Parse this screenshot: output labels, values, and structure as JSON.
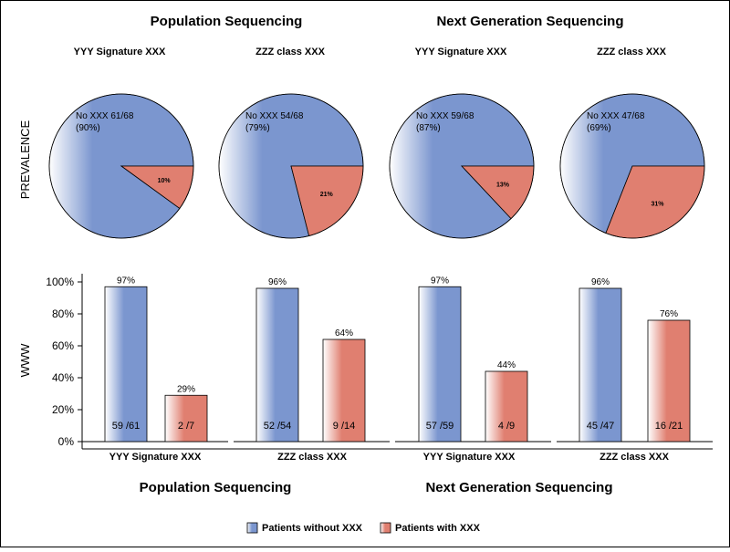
{
  "colors": {
    "without": "#7B96CF",
    "with": "#E07F70",
    "without_light": "#FFFFFF",
    "with_light": "#FFFFFF",
    "outline": "#000000"
  },
  "pie_section": {
    "ylabel": "PREVALENCE"
  },
  "bar_section": {
    "ylabel": "WWW"
  },
  "top_groups": [
    "Population Sequencing",
    "Next Generation Sequencing"
  ],
  "bottom_groups": [
    "Population Sequencing",
    "Next Generation Sequencing"
  ],
  "legend": {
    "without_label": "Patients without XXX",
    "with_label": "Patients with XXX"
  },
  "chart_data": [
    {
      "type": "pie",
      "panels": [
        {
          "group": "Population Sequencing",
          "title": "YYY Signature XXX",
          "slices": [
            {
              "name": "Patients without XXX",
              "value": 90,
              "label_line1": "No XXX 61/68",
              "label_line2": "(90%)"
            },
            {
              "name": "Patients with XXX",
              "value": 10,
              "label": "10%"
            }
          ]
        },
        {
          "group": "Population Sequencing",
          "title": "ZZZ class XXX",
          "slices": [
            {
              "name": "Patients without XXX",
              "value": 79,
              "label_line1": "No XXX 54/68",
              "label_line2": "(79%)"
            },
            {
              "name": "Patients with XXX",
              "value": 21,
              "label": "21%"
            }
          ]
        },
        {
          "group": "Next Generation Sequencing",
          "title": "YYY Signature XXX",
          "slices": [
            {
              "name": "Patients without XXX",
              "value": 87,
              "label_line1": "No XXX 59/68",
              "label_line2": "(87%)"
            },
            {
              "name": "Patients with XXX",
              "value": 13,
              "label": "13%"
            }
          ]
        },
        {
          "group": "Next Generation Sequencing",
          "title": "ZZZ class XXX",
          "slices": [
            {
              "name": "Patients without XXX",
              "value": 69,
              "label_line1": "No XXX 47/68",
              "label_line2": "(69%)"
            },
            {
              "name": "Patients with XXX",
              "value": 31,
              "label": "31%"
            }
          ]
        }
      ]
    },
    {
      "type": "bar",
      "ylabel": "WWW",
      "ylim": [
        0,
        100
      ],
      "yticks": [
        0,
        20,
        40,
        60,
        80,
        100
      ],
      "ytick_labels": [
        "0%",
        "20%",
        "40%",
        "60%",
        "80%",
        "100%"
      ],
      "categories": [
        "YYY Signature XXX",
        "ZZZ class XXX",
        "YYY Signature XXX",
        "ZZZ class XXX"
      ],
      "groups": [
        "Population Sequencing",
        "Population Sequencing",
        "Next Generation Sequencing",
        "Next Generation Sequencing"
      ],
      "series": [
        {
          "name": "Patients without XXX",
          "values": [
            97,
            96,
            97,
            96
          ],
          "value_labels": [
            "97%",
            "96%",
            "97%",
            "96%"
          ],
          "count_labels": [
            "59 /61",
            "52 /54",
            "57 /59",
            "45 /47"
          ]
        },
        {
          "name": "Patients with XXX",
          "values": [
            29,
            64,
            44,
            76
          ],
          "value_labels": [
            "29%",
            "64%",
            "44%",
            "76%"
          ],
          "count_labels": [
            "2 /7",
            "9 /14",
            "4 /9",
            "16 /21"
          ]
        }
      ],
      "grid": false,
      "legend": "bottom"
    }
  ]
}
